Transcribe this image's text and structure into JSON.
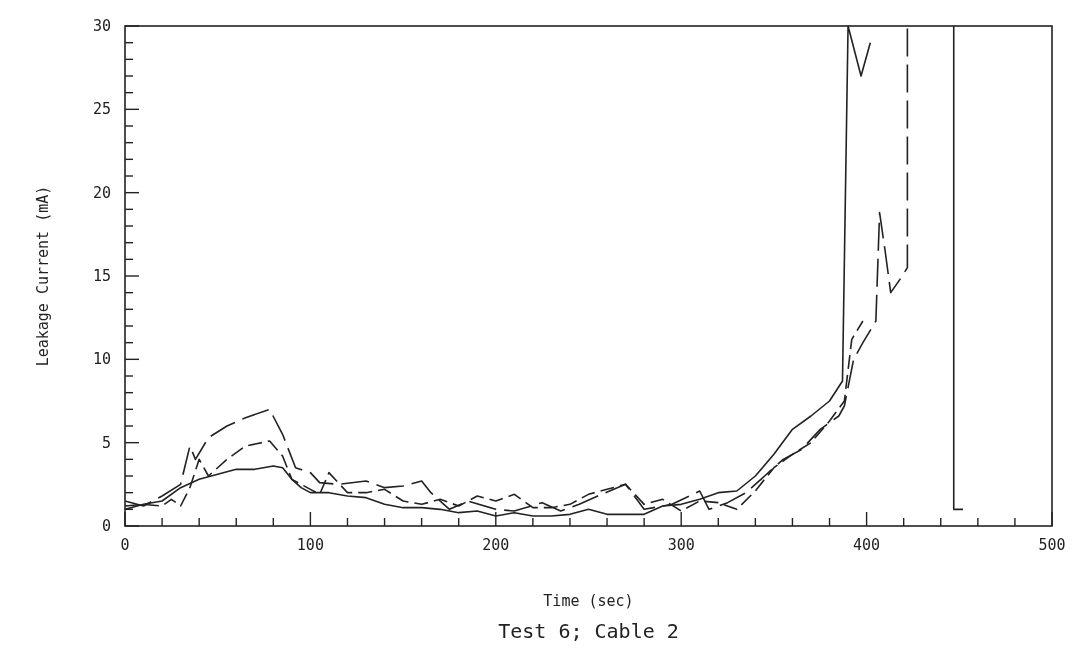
{
  "chart_data": {
    "type": "line",
    "title": "Test 6; Cable 2",
    "xlabel": "Time (sec)",
    "ylabel": "Leakage Current (mA)",
    "xlim": [
      0,
      500
    ],
    "ylim": [
      0,
      30
    ],
    "xticks": [
      0,
      {
        "value": 20,
        "label": null
      },
      {
        "value": 40,
        "label": null
      },
      {
        "value": 60,
        "label": null
      },
      {
        "value": 80,
        "label": null
      },
      100,
      {
        "value": 120,
        "label": null
      },
      {
        "value": 140,
        "label": null
      },
      {
        "value": 160,
        "label": null
      },
      {
        "value": 180,
        "label": null
      },
      200,
      {
        "value": 220,
        "label": null
      },
      {
        "value": 240,
        "label": null
      },
      {
        "value": 260,
        "label": null
      },
      {
        "value": 280,
        "label": null
      },
      300,
      {
        "value": 320,
        "label": null
      },
      {
        "value": 340,
        "label": null
      },
      {
        "value": 360,
        "label": null
      },
      {
        "value": 380,
        "label": null
      },
      400,
      {
        "value": 420,
        "label": null
      },
      {
        "value": 440,
        "label": null
      },
      {
        "value": 460,
        "label": null
      },
      {
        "value": 480,
        "label": null
      },
      500
    ],
    "yticks": [
      0,
      {
        "value": 1,
        "label": null
      },
      {
        "value": 2,
        "label": null
      },
      {
        "value": 3,
        "label": null
      },
      {
        "value": 4,
        "label": null
      },
      5,
      {
        "value": 6,
        "label": null
      },
      {
        "value": 7,
        "label": null
      },
      {
        "value": 8,
        "label": null
      },
      {
        "value": 9,
        "label": null
      },
      10,
      {
        "value": 11,
        "label": null
      },
      {
        "value": 12,
        "label": null
      },
      {
        "value": 13,
        "label": null
      },
      {
        "value": 14,
        "label": null
      },
      15,
      {
        "value": 16,
        "label": null
      },
      {
        "value": 17,
        "label": null
      },
      {
        "value": 18,
        "label": null
      },
      {
        "value": 19,
        "label": null
      },
      20,
      {
        "value": 21,
        "label": null
      },
      {
        "value": 22,
        "label": null
      },
      {
        "value": 23,
        "label": null
      },
      {
        "value": 24,
        "label": null
      },
      25,
      {
        "value": 26,
        "label": null
      },
      {
        "value": 27,
        "label": null
      },
      {
        "value": 28,
        "label": null
      },
      {
        "value": 29,
        "label": null
      },
      30
    ],
    "grid": false,
    "marker": "none",
    "series": [
      {
        "color": "#222222",
        "line_style": "solid",
        "x": [
          0,
          10,
          20,
          30,
          40,
          50,
          60,
          70,
          80,
          85,
          90,
          95,
          100,
          110,
          120,
          130,
          140,
          150,
          160,
          170,
          180,
          190,
          200,
          210,
          220,
          230,
          240,
          250,
          260,
          270,
          280,
          290,
          300,
          310,
          320,
          330,
          340,
          350,
          360,
          370,
          380,
          387,
          390,
          397,
          402,
          425,
          447,
          447,
          452
        ],
        "values": [
          1.0,
          1.3,
          1.5,
          2.3,
          2.8,
          3.1,
          3.4,
          3.4,
          3.6,
          3.5,
          2.8,
          2.3,
          2.0,
          2.0,
          1.8,
          1.7,
          1.3,
          1.1,
          1.1,
          1.0,
          0.8,
          0.9,
          0.6,
          0.8,
          0.6,
          0.6,
          0.7,
          1.0,
          0.7,
          0.7,
          0.7,
          1.2,
          1.3,
          1.6,
          2.0,
          2.1,
          3.0,
          4.3,
          5.8,
          6.6,
          7.5,
          8.7,
          30,
          27,
          29,
          null,
          30,
          1,
          1
        ]
      },
      {
        "color": "#222222",
        "line_style": "dashed",
        "x": [
          0,
          10,
          20,
          25,
          30,
          35,
          40,
          45,
          55,
          65,
          78,
          85,
          90,
          100,
          105,
          110,
          120,
          130,
          140,
          150,
          160,
          170,
          180,
          190,
          200,
          210,
          220,
          230,
          240,
          250,
          260,
          270,
          280,
          290,
          300,
          310,
          320,
          330,
          340,
          350,
          360,
          370,
          380,
          388,
          392,
          398
        ],
        "values": [
          1.2,
          1.3,
          1.2,
          1.6,
          1.2,
          2.3,
          4.0,
          3.0,
          4.0,
          4.8,
          5.1,
          4.2,
          2.8,
          2.2,
          1.9,
          3.2,
          2.0,
          2.0,
          2.2,
          1.5,
          1.3,
          1.6,
          1.2,
          1.8,
          1.5,
          1.9,
          1.1,
          1.1,
          1.3,
          1.9,
          2.2,
          2.5,
          1.3,
          1.6,
          0.9,
          1.5,
          1.4,
          1.0,
          2.1,
          3.5,
          4.3,
          5.0,
          6.3,
          7.5,
          11.2,
          12.3
        ]
      },
      {
        "color": "#222222",
        "line_style": "longdash",
        "x": [
          0,
          10,
          20,
          30,
          35,
          38,
          45,
          55,
          65,
          78,
          85,
          92,
          100,
          105,
          115,
          130,
          140,
          150,
          160,
          165,
          175,
          185,
          200,
          210,
          225,
          235,
          245,
          255,
          270,
          280,
          295,
          310,
          315,
          325,
          335,
          345,
          355,
          365,
          375,
          385,
          388,
          393,
          398,
          405,
          407,
          410,
          413,
          418,
          422,
          422
        ],
        "values": [
          1.5,
          1.2,
          1.8,
          2.5,
          4.8,
          4.0,
          5.3,
          6.0,
          6.5,
          7.0,
          5.5,
          3.5,
          3.2,
          2.6,
          2.5,
          2.7,
          2.3,
          2.4,
          2.7,
          2.0,
          1.0,
          1.5,
          1.0,
          0.9,
          1.4,
          0.9,
          1.3,
          1.8,
          2.5,
          1.0,
          1.3,
          2.1,
          1.0,
          1.4,
          2.0,
          3.0,
          4.0,
          4.6,
          5.8,
          6.6,
          7.2,
          10,
          11,
          12.3,
          18.8,
          16.5,
          14,
          14.8,
          15.5,
          30
        ]
      }
    ]
  }
}
